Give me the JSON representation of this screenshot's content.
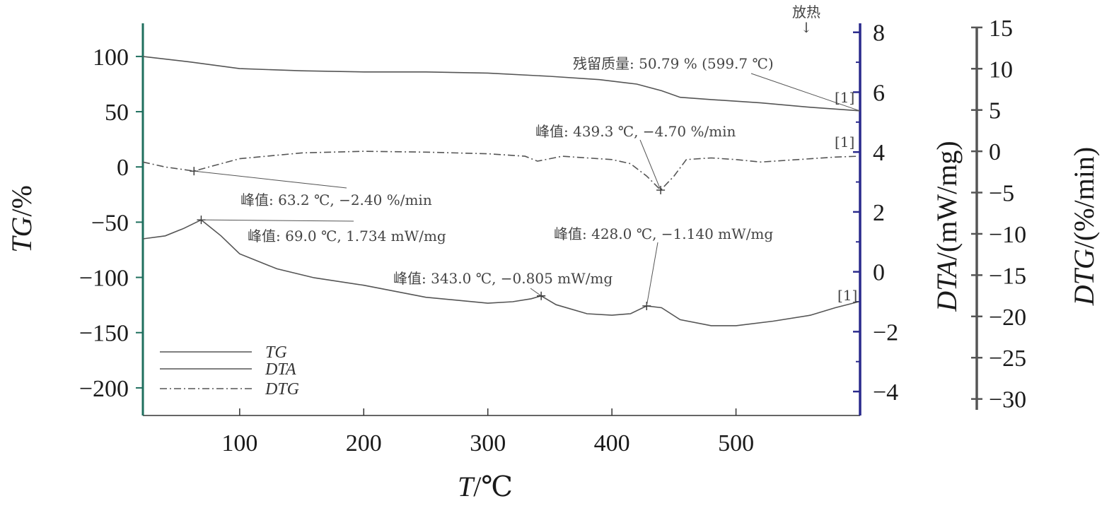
{
  "chart_data": {
    "type": "line",
    "xlabel": "T/℃",
    "xlim": [
      22,
      600
    ],
    "x_ticks": [
      100,
      200,
      300,
      400,
      500
    ],
    "axes": {
      "tg": {
        "label": "TG/%",
        "lim": [
          -225,
          130
        ],
        "ticks": [
          100,
          50,
          0,
          -50,
          -100,
          -150,
          -200
        ],
        "color": "#1f6f5e"
      },
      "dta": {
        "label": "DTA/(mW/mg)",
        "lim": [
          -4.8,
          8.3
        ],
        "ticks": [
          8,
          6,
          4,
          2,
          0,
          -2,
          -4
        ],
        "color": "#2a2a8c"
      },
      "dtg": {
        "label": "DTG/(%/min)",
        "lim": [
          -32,
          15.5
        ],
        "ticks": [
          15,
          10,
          5,
          0,
          -5,
          -10,
          -15,
          -20,
          -25,
          -30
        ],
        "color": "#555555"
      }
    },
    "series": [
      {
        "name": "TG",
        "axis": "tg",
        "style": "solid",
        "color": "#555555",
        "points": [
          [
            22,
            100
          ],
          [
            60,
            95
          ],
          [
            100,
            89
          ],
          [
            150,
            87
          ],
          [
            200,
            86
          ],
          [
            250,
            86
          ],
          [
            300,
            85
          ],
          [
            350,
            82
          ],
          [
            390,
            79
          ],
          [
            420,
            75
          ],
          [
            440,
            69
          ],
          [
            455,
            63
          ],
          [
            480,
            61
          ],
          [
            520,
            58
          ],
          [
            560,
            54
          ],
          [
            599.7,
            50.79
          ]
        ]
      },
      {
        "name": "DTA",
        "axis": "dta",
        "style": "solid",
        "color": "#555555",
        "points": [
          [
            22,
            1.1
          ],
          [
            40,
            1.2
          ],
          [
            55,
            1.45
          ],
          [
            69,
            1.734
          ],
          [
            85,
            1.2
          ],
          [
            100,
            0.6
          ],
          [
            130,
            0.1
          ],
          [
            160,
            -0.2
          ],
          [
            200,
            -0.45
          ],
          [
            250,
            -0.85
          ],
          [
            300,
            -1.05
          ],
          [
            320,
            -1.0
          ],
          [
            335,
            -0.9
          ],
          [
            343,
            -0.805
          ],
          [
            355,
            -1.1
          ],
          [
            380,
            -1.4
          ],
          [
            400,
            -1.45
          ],
          [
            415,
            -1.4
          ],
          [
            428,
            -1.14
          ],
          [
            440,
            -1.2
          ],
          [
            455,
            -1.6
          ],
          [
            480,
            -1.8
          ],
          [
            500,
            -1.8
          ],
          [
            530,
            -1.65
          ],
          [
            560,
            -1.45
          ],
          [
            580,
            -1.2
          ],
          [
            599,
            -1.0
          ]
        ]
      },
      {
        "name": "DTG",
        "axis": "dtg",
        "style": "dashdot",
        "color": "#555555",
        "points": [
          [
            22,
            -1.3
          ],
          [
            40,
            -1.9
          ],
          [
            63.2,
            -2.4
          ],
          [
            80,
            -1.7
          ],
          [
            100,
            -0.9
          ],
          [
            150,
            -0.2
          ],
          [
            200,
            0
          ],
          [
            250,
            -0.1
          ],
          [
            300,
            -0.3
          ],
          [
            330,
            -0.6
          ],
          [
            340,
            -1.2
          ],
          [
            350,
            -0.9
          ],
          [
            360,
            -0.6
          ],
          [
            380,
            -0.8
          ],
          [
            400,
            -1.0
          ],
          [
            415,
            -1.5
          ],
          [
            428,
            -3.0
          ],
          [
            439.3,
            -4.7
          ],
          [
            450,
            -3.0
          ],
          [
            460,
            -1.0
          ],
          [
            480,
            -0.8
          ],
          [
            500,
            -1.0
          ],
          [
            520,
            -1.3
          ],
          [
            550,
            -1.0
          ],
          [
            580,
            -0.7
          ],
          [
            599,
            -0.6
          ]
        ]
      }
    ],
    "peak_markers": [
      {
        "axis": "dtg",
        "x": 63.2,
        "y": -2.4
      },
      {
        "axis": "dtg",
        "x": 439.3,
        "y": -4.7
      },
      {
        "axis": "dta",
        "x": 69.0,
        "y": 1.734
      },
      {
        "axis": "dta",
        "x": 343.0,
        "y": -0.805
      },
      {
        "axis": "dta",
        "x": 428.0,
        "y": -1.14
      }
    ],
    "annotations": [
      {
        "text": "残留质量: 50.79 % (599.7 ℃)"
      },
      {
        "text": "峰值: 439.3 ℃, −4.70 %/min"
      },
      {
        "text": "峰值: 63.2 ℃, −2.40 %/min"
      },
      {
        "text": "峰值: 69.0 ℃, 1.734 mW/mg"
      },
      {
        "text": "峰值: 428.0 ℃, −1.140 mW/mg"
      },
      {
        "text": "峰值: 343.0 ℃, −0.805 mW/mg"
      }
    ],
    "curve_tags": [
      "[1]",
      "[1]",
      "[1]"
    ],
    "exo_label": "放热",
    "exo_arrow": "↓",
    "legend": {
      "position": "bottom-left",
      "entries": [
        "TG",
        "DTA",
        "DTG"
      ]
    }
  }
}
